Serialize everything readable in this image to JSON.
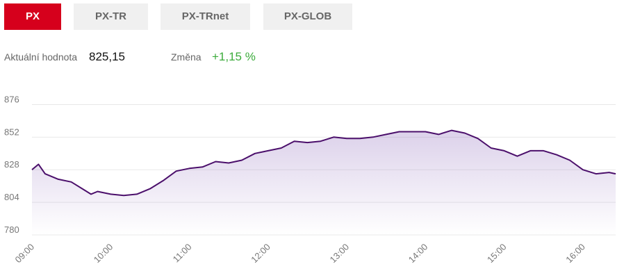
{
  "tabs": [
    "PX",
    "PX-TR",
    "PX-TRnet",
    "PX-GLOB"
  ],
  "active_tab": 0,
  "info": {
    "current_label": "Aktuální hodnota",
    "current_value": "825,15",
    "change_label": "Změna",
    "change_value": "+1,15 %"
  },
  "chart_data": {
    "type": "line",
    "color": "#4b0f6b",
    "area_color": "#9b7cc4",
    "x": [
      "09:00",
      "09:05",
      "09:10",
      "09:20",
      "09:30",
      "09:40",
      "09:45",
      "09:50",
      "10:00",
      "10:10",
      "10:20",
      "10:30",
      "10:40",
      "10:50",
      "11:00",
      "11:10",
      "11:20",
      "11:30",
      "11:40",
      "11:50",
      "12:00",
      "12:10",
      "12:20",
      "12:30",
      "12:40",
      "12:50",
      "13:00",
      "13:10",
      "13:20",
      "13:30",
      "13:40",
      "13:50",
      "14:00",
      "14:10",
      "14:20",
      "14:30",
      "14:40",
      "14:50",
      "15:00",
      "15:10",
      "15:20",
      "15:30",
      "15:40",
      "15:50",
      "16:00",
      "16:10",
      "16:20",
      "16:25"
    ],
    "values": [
      828,
      832,
      825,
      821,
      819,
      813,
      810,
      812,
      810,
      809,
      810,
      814,
      820,
      827,
      829,
      830,
      834,
      833,
      835,
      840,
      842,
      844,
      849,
      848,
      849,
      852,
      851,
      851,
      852,
      854,
      856,
      856,
      856,
      854,
      857,
      855,
      851,
      844,
      842,
      838,
      842,
      842,
      839,
      835,
      828,
      825,
      826,
      825
    ],
    "xlim": [
      "09:00",
      "16:25"
    ],
    "xticks": [
      "09:00",
      "10:00",
      "11:00",
      "12:00",
      "13:00",
      "14:00",
      "15:00",
      "16:00"
    ],
    "ylim": [
      780,
      888
    ],
    "yticks": [
      780,
      804,
      828,
      852,
      876
    ],
    "grid": true
  }
}
